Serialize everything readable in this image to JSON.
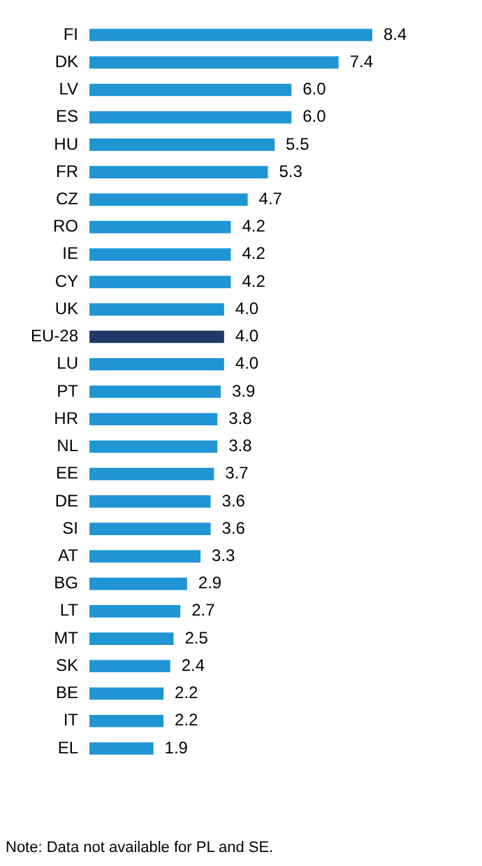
{
  "chart_data": {
    "type": "bar",
    "orientation": "horizontal",
    "categories": [
      "FI",
      "DK",
      "LV",
      "ES",
      "HU",
      "FR",
      "CZ",
      "RO",
      "IE",
      "CY",
      "UK",
      "EU-28",
      "LU",
      "PT",
      "HR",
      "NL",
      "EE",
      "DE",
      "SI",
      "AT",
      "BG",
      "LT",
      "MT",
      "SK",
      "BE",
      "IT",
      "EL"
    ],
    "values": [
      8.4,
      7.4,
      6.0,
      6.0,
      5.5,
      5.3,
      4.7,
      4.2,
      4.2,
      4.2,
      4.0,
      4.0,
      4.0,
      3.9,
      3.8,
      3.8,
      3.7,
      3.6,
      3.6,
      3.3,
      2.9,
      2.7,
      2.5,
      2.4,
      2.2,
      2.2,
      1.9
    ],
    "value_labels": [
      "8.4",
      "7.4",
      "6.0",
      "6.0",
      "5.5",
      "5.3",
      "4.7",
      "4.2",
      "4.2",
      "4.2",
      "4.0",
      "4.0",
      "4.0",
      "3.9",
      "3.8",
      "3.8",
      "3.7",
      "3.6",
      "3.6",
      "3.3",
      "2.9",
      "2.7",
      "2.5",
      "2.4",
      "2.2",
      "2.2",
      "1.9"
    ],
    "colors": [
      "#1f95d3",
      "#1f95d3",
      "#1f95d3",
      "#1f95d3",
      "#1f95d3",
      "#1f95d3",
      "#1f95d3",
      "#1f95d3",
      "#1f95d3",
      "#1f95d3",
      "#1f95d3",
      "#1f3a68",
      "#1f95d3",
      "#1f95d3",
      "#1f95d3",
      "#1f95d3",
      "#1f95d3",
      "#1f95d3",
      "#1f95d3",
      "#1f95d3",
      "#1f95d3",
      "#1f95d3",
      "#1f95d3",
      "#1f95d3",
      "#1f95d3",
      "#1f95d3",
      "#1f95d3"
    ],
    "tick_labels": "y",
    "legend": false,
    "annotations": [
      "Note: Data not available for PL and SE."
    ]
  }
}
